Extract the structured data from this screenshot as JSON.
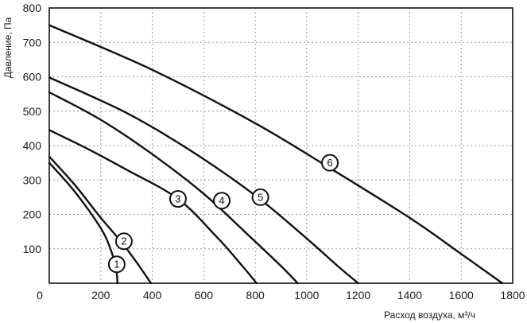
{
  "chart_data": {
    "type": "line",
    "title": "",
    "xlabel": "Расход воздуха, м³/ч",
    "ylabel": "Давление, Па",
    "xlim": [
      0,
      1800
    ],
    "ylim": [
      0,
      800
    ],
    "x_ticks": [
      "0",
      "200",
      "400",
      "600",
      "800",
      "1000",
      "1200",
      "1400",
      "1600",
      "1800"
    ],
    "y_ticks": [
      "100",
      "200",
      "300",
      "400",
      "500",
      "600",
      "700",
      "800"
    ],
    "grid": true,
    "series": [
      {
        "name": "1",
        "points": [
          [
            0,
            350
          ],
          [
            100,
            265
          ],
          [
            200,
            160
          ],
          [
            240,
            95
          ],
          [
            260,
            40
          ],
          [
            265,
            0
          ]
        ]
      },
      {
        "name": "2",
        "points": [
          [
            0,
            368
          ],
          [
            100,
            285
          ],
          [
            200,
            190
          ],
          [
            280,
            120
          ],
          [
            340,
            60
          ],
          [
            395,
            0
          ]
        ]
      },
      {
        "name": "3",
        "points": [
          [
            0,
            445
          ],
          [
            150,
            390
          ],
          [
            300,
            330
          ],
          [
            500,
            245
          ],
          [
            650,
            135
          ],
          [
            750,
            50
          ],
          [
            805,
            0
          ]
        ]
      },
      {
        "name": "4",
        "points": [
          [
            0,
            555
          ],
          [
            200,
            475
          ],
          [
            400,
            375
          ],
          [
            600,
            260
          ],
          [
            780,
            135
          ],
          [
            900,
            50
          ],
          [
            965,
            0
          ]
        ]
      },
      {
        "name": "5",
        "points": [
          [
            0,
            598
          ],
          [
            300,
            495
          ],
          [
            550,
            385
          ],
          [
            800,
            255
          ],
          [
            1000,
            130
          ],
          [
            1120,
            50
          ],
          [
            1200,
            0
          ]
        ]
      },
      {
        "name": "6",
        "points": [
          [
            0,
            750
          ],
          [
            400,
            620
          ],
          [
            800,
            465
          ],
          [
            1100,
            330
          ],
          [
            1400,
            190
          ],
          [
            1600,
            85
          ],
          [
            1760,
            0
          ]
        ]
      }
    ],
    "label_positions": [
      [
        262,
        55
      ],
      [
        290,
        122
      ],
      [
        500,
        245
      ],
      [
        670,
        240
      ],
      [
        820,
        250
      ],
      [
        1090,
        350
      ]
    ]
  }
}
